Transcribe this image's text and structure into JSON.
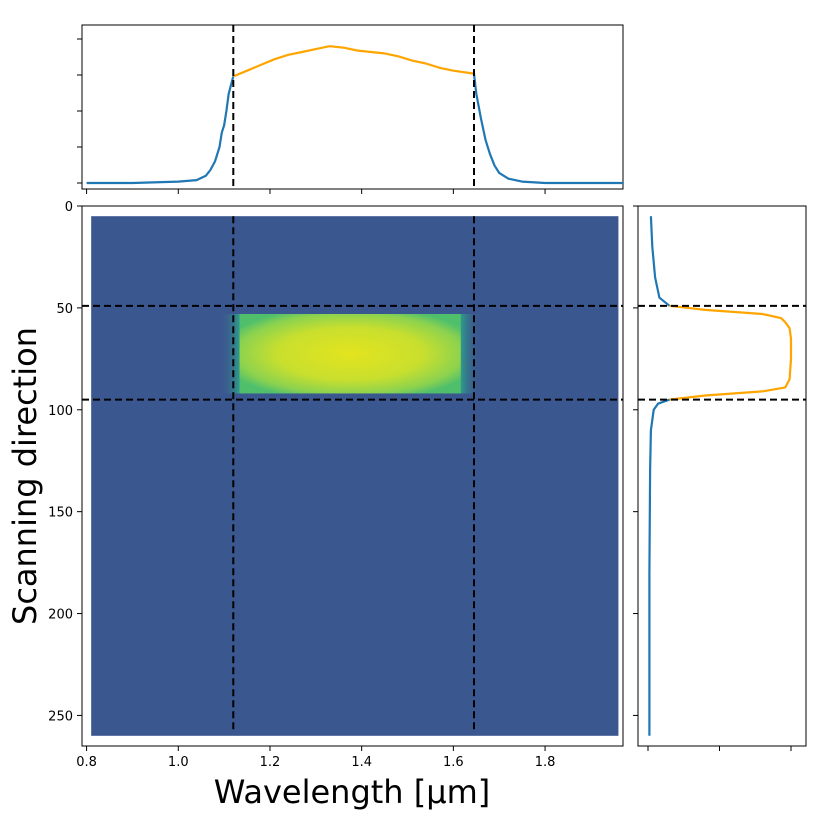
{
  "chart_data": [
    {
      "panel": "image",
      "type": "heatmap",
      "xlabel": "Wavelength [μm]",
      "ylabel": "Scanning direction",
      "xlim": [
        0.79,
        1.97
      ],
      "ylim": [
        265,
        0
      ],
      "y_inverted": true,
      "xticks": [
        0.8,
        1.0,
        1.2,
        1.4,
        1.6,
        1.8
      ],
      "xtick_labels": [
        "0.8",
        "1.0",
        "1.2",
        "1.4",
        "1.6",
        "1.8"
      ],
      "yticks": [
        0,
        50,
        100,
        150,
        200,
        250
      ],
      "ytick_labels": [
        "0",
        "50",
        "100",
        "150",
        "200",
        "250"
      ],
      "detector_extent": {
        "x": [
          0.81,
          1.96
        ],
        "y": [
          5,
          260
        ]
      },
      "bright_region": {
        "x": [
          1.09,
          1.66
        ],
        "y": [
          53,
          92
        ]
      },
      "background_color": "#3b578f",
      "peak_color": "#e3e41e",
      "cut_wavelengths": [
        1.12,
        1.645
      ],
      "cut_rows": [
        49,
        95
      ]
    },
    {
      "panel": "top",
      "type": "line",
      "xlim": [
        0.79,
        1.97
      ],
      "series": [
        {
          "color": "#1f77b4",
          "x": [
            0.8,
            0.9,
            1.0,
            1.04,
            1.06,
            1.07,
            1.08,
            1.09,
            1.095,
            1.1,
            1.105,
            1.11,
            1.12
          ],
          "y": [
            0.0,
            0.0,
            0.01,
            0.02,
            0.05,
            0.09,
            0.15,
            0.25,
            0.35,
            0.4,
            0.5,
            0.62,
            0.74
          ]
        },
        {
          "color": "#ffa500",
          "x": [
            1.12,
            1.15,
            1.18,
            1.21,
            1.24,
            1.27,
            1.3,
            1.33,
            1.36,
            1.39,
            1.42,
            1.45,
            1.48,
            1.51,
            1.54,
            1.57,
            1.6,
            1.645
          ],
          "y": [
            0.74,
            0.78,
            0.82,
            0.86,
            0.89,
            0.91,
            0.93,
            0.95,
            0.94,
            0.92,
            0.91,
            0.9,
            0.88,
            0.85,
            0.83,
            0.8,
            0.78,
            0.76
          ]
        },
        {
          "color": "#1f77b4",
          "x": [
            1.645,
            1.65,
            1.66,
            1.67,
            1.68,
            1.69,
            1.7,
            1.72,
            1.75,
            1.8,
            1.9,
            1.97
          ],
          "y": [
            0.76,
            0.62,
            0.45,
            0.3,
            0.2,
            0.12,
            0.07,
            0.03,
            0.01,
            0.0,
            0.0,
            0.0
          ]
        }
      ],
      "cut_wavelengths": [
        1.12,
        1.645
      ]
    },
    {
      "panel": "right",
      "type": "line",
      "orientation": "vertical",
      "ylim": [
        265,
        0
      ],
      "series": [
        {
          "color": "#1f77b4",
          "y": [
            5,
            20,
            35,
            45,
            49
          ],
          "x": [
            0.02,
            0.03,
            0.05,
            0.08,
            0.15
          ]
        },
        {
          "color": "#ffa500",
          "y": [
            49,
            51,
            53,
            55,
            57,
            60,
            65,
            75,
            85,
            89,
            91,
            93,
            95
          ],
          "x": [
            0.15,
            0.4,
            0.8,
            0.93,
            0.96,
            0.99,
            1.0,
            1.0,
            0.99,
            0.96,
            0.8,
            0.4,
            0.15
          ]
        },
        {
          "color": "#1f77b4",
          "y": [
            95,
            97,
            100,
            110,
            130,
            180,
            230,
            260
          ],
          "x": [
            0.15,
            0.07,
            0.04,
            0.02,
            0.015,
            0.01,
            0.01,
            0.01
          ]
        }
      ],
      "cut_rows": [
        49,
        95
      ]
    }
  ]
}
